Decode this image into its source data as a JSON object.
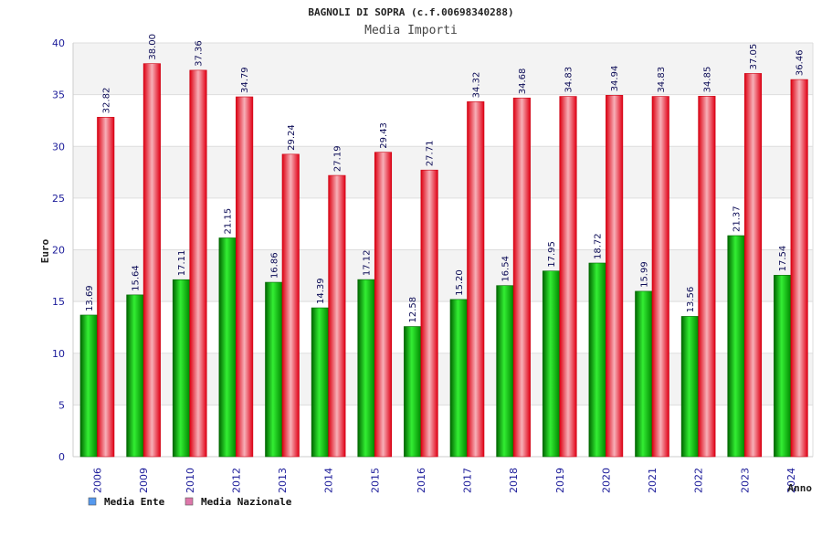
{
  "chart_data": {
    "type": "bar",
    "title": "BAGNOLI DI SOPRA (c.f.00698340288)",
    "subtitle": "Media Importi",
    "ylabel": "Euro",
    "xlabel": "Anno",
    "ylim": [
      0,
      40
    ],
    "yticks": [
      0,
      5,
      10,
      15,
      20,
      25,
      30,
      35,
      40
    ],
    "grid": true,
    "legend_position": "bottom-left",
    "categories": [
      "2006",
      "2009",
      "2010",
      "2012",
      "2013",
      "2014",
      "2015",
      "2016",
      "2017",
      "2018",
      "2019",
      "2020",
      "2021",
      "2022",
      "2023",
      "2024"
    ],
    "series": [
      {
        "name": "Media Ente",
        "color": "#00aa00",
        "legend_color": "#5599ee",
        "values": [
          13.69,
          15.64,
          17.11,
          21.15,
          16.86,
          14.39,
          17.12,
          12.58,
          15.2,
          16.54,
          17.95,
          18.72,
          15.99,
          13.56,
          21.37,
          17.54
        ],
        "labels": [
          "13.69",
          "15.64",
          "17.11",
          "21.15",
          "16.86",
          "14.39",
          "17.12",
          "12.58",
          "15.20",
          "16.54",
          "17.95",
          "18.72",
          "15.99",
          "13.56",
          "21.37",
          "17.54"
        ]
      },
      {
        "name": "Media Nazionale",
        "color": "#ee1122",
        "legend_color": "#dd77aa",
        "values": [
          32.82,
          38.0,
          37.36,
          34.79,
          29.24,
          27.19,
          29.43,
          27.71,
          34.32,
          34.68,
          34.83,
          34.94,
          34.83,
          34.85,
          37.05,
          36.46
        ],
        "labels": [
          "32.82",
          "38.00",
          "37.36",
          "34.79",
          "29.24",
          "27.19",
          "29.43",
          "27.71",
          "34.32",
          "34.68",
          "34.83",
          "34.94",
          "34.83",
          "34.85",
          "37.05",
          "36.46"
        ]
      }
    ]
  }
}
